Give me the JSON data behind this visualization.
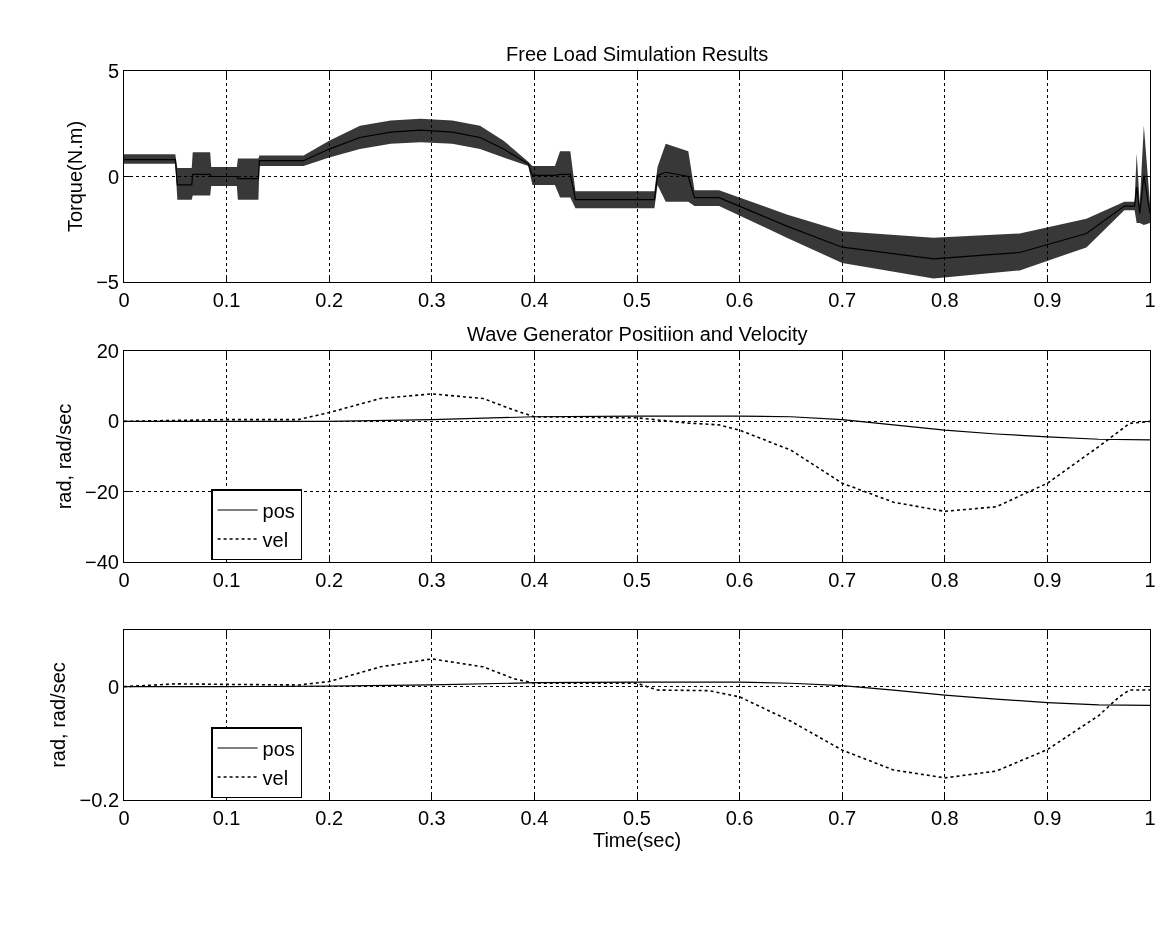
{
  "chart_data": [
    {
      "type": "line",
      "title": "Free Load Simulation Results",
      "ylabel": "Torque(N.m)",
      "xlim": [
        0,
        1
      ],
      "xticks": [
        0,
        0.1,
        0.2,
        0.3,
        0.4,
        0.5,
        0.6,
        0.7,
        0.8,
        0.9,
        1
      ],
      "ylim": [
        -5,
        5
      ],
      "yticks": [
        -5,
        0,
        5
      ],
      "grid": true,
      "legend": false,
      "series": [
        {
          "color": "#000000",
          "x": [
            0,
            0.05,
            0.052,
            0.066,
            0.067,
            0.084,
            0.085,
            0.11,
            0.111,
            0.131,
            0.132,
            0.175,
            0.2,
            0.23,
            0.26,
            0.289,
            0.32,
            0.347,
            0.37,
            0.394,
            0.398,
            0.42,
            0.425,
            0.435,
            0.44,
            0.517,
            0.52,
            0.528,
            0.55,
            0.556,
            0.58,
            0.646,
            0.7,
            0.789,
            0.873,
            0.938,
            0.975,
            0.985,
            0.987,
            0.99,
            0.994,
            1.0
          ],
          "lower": [
            0.6,
            0.6,
            -1.1,
            -1.1,
            -0.9,
            -0.9,
            -0.45,
            -0.45,
            -1.1,
            -1.1,
            0.5,
            0.5,
            0.9,
            1.3,
            1.55,
            1.62,
            1.55,
            1.3,
            0.9,
            0.5,
            -0.4,
            -0.4,
            -1.0,
            -1.0,
            -1.5,
            -1.5,
            -0.4,
            -1.2,
            -1.2,
            -1.4,
            -1.4,
            -2.9,
            -4.1,
            -4.83,
            -4.45,
            -3.36,
            -1.6,
            -1.6,
            -2.2,
            -2.2,
            -2.3,
            -2.2
          ],
          "upper": [
            1.05,
            1.05,
            0.4,
            0.4,
            1.15,
            1.15,
            0.45,
            0.45,
            0.85,
            0.85,
            1.0,
            1.0,
            1.7,
            2.4,
            2.65,
            2.74,
            2.65,
            2.4,
            1.7,
            0.7,
            0.5,
            0.5,
            1.2,
            1.2,
            -0.7,
            -0.7,
            0.45,
            1.55,
            1.2,
            -0.65,
            -0.65,
            -1.8,
            -2.6,
            -2.9,
            -2.7,
            -2.0,
            -1.2,
            -1.2,
            1.1,
            -1.3,
            2.4,
            -1.3
          ],
          "values": [
            0.8,
            0.8,
            -0.4,
            -0.4,
            0.1,
            0.1,
            0,
            0,
            -0.1,
            -0.1,
            0.75,
            0.75,
            1.3,
            1.85,
            2.1,
            2.2,
            2.1,
            1.85,
            1.3,
            0.6,
            0.05,
            0.05,
            0.1,
            0.1,
            -1.1,
            -1.1,
            0.05,
            0.2,
            0,
            -1.0,
            -1.0,
            -2.35,
            -3.35,
            -3.9,
            -3.6,
            -2.7,
            -1.4,
            -1.4,
            -0.5,
            -1.75,
            0.05,
            -1.75
          ]
        }
      ]
    },
    {
      "type": "line",
      "title": "Wave Generator Positiion and Velocity",
      "ylabel": "rad, rad/sec",
      "xlim": [
        0,
        1
      ],
      "xticks": [
        0,
        0.1,
        0.2,
        0.3,
        0.4,
        0.5,
        0.6,
        0.7,
        0.8,
        0.9,
        1
      ],
      "ylim": [
        -40,
        20
      ],
      "yticks": [
        -40,
        -20,
        0,
        20
      ],
      "grid": true,
      "legend": "bottom left",
      "series": [
        {
          "name": "pos",
          "color": "#000000",
          "line_style": "solid",
          "x": [
            0,
            0.1,
            0.2,
            0.3,
            0.4,
            0.5,
            0.6,
            0.65,
            0.7,
            0.75,
            0.8,
            0.85,
            0.9,
            0.95,
            1.0
          ],
          "values": [
            0,
            0,
            0,
            0.5,
            1.3,
            1.5,
            1.5,
            1.3,
            0.5,
            -1.0,
            -2.5,
            -3.6,
            -4.4,
            -5.1,
            -5.3
          ]
        },
        {
          "name": "vel",
          "color": "#000000",
          "line_style": "dotted",
          "x": [
            0,
            0.1,
            0.17,
            0.2,
            0.25,
            0.3,
            0.35,
            0.38,
            0.4,
            0.5,
            0.55,
            0.58,
            0.6,
            0.65,
            0.7,
            0.75,
            0.8,
            0.85,
            0.9,
            0.95,
            0.98,
            1.0
          ],
          "values": [
            0,
            0.5,
            0.5,
            2.5,
            6.5,
            7.8,
            6.5,
            3.2,
            1.3,
            1.0,
            -0.5,
            -1.0,
            -2.5,
            -8.2,
            -17.6,
            -23,
            -25.6,
            -24.3,
            -17.6,
            -7.2,
            -0.6,
            0
          ]
        }
      ]
    },
    {
      "type": "line",
      "ylabel": "rad, rad/sec",
      "xlabel": "Time(sec)",
      "xlim": [
        0,
        1
      ],
      "xticks": [
        0,
        0.1,
        0.2,
        0.3,
        0.4,
        0.5,
        0.6,
        0.7,
        0.8,
        0.9,
        1
      ],
      "ylim": [
        -0.2,
        0.1
      ],
      "yticks": [
        -0.2,
        0
      ],
      "grid": true,
      "legend": "bottom left",
      "series": [
        {
          "name": "pos",
          "color": "#000000",
          "line_style": "solid",
          "x": [
            0,
            0.1,
            0.2,
            0.3,
            0.4,
            0.5,
            0.6,
            0.65,
            0.7,
            0.75,
            0.8,
            0.85,
            0.9,
            0.95,
            1.0
          ],
          "values": [
            0,
            0,
            0.001,
            0.003,
            0.007,
            0.008,
            0.008,
            0.006,
            0.002,
            -0.006,
            -0.015,
            -0.022,
            -0.028,
            -0.032,
            -0.033
          ]
        },
        {
          "name": "vel",
          "color": "#000000",
          "line_style": "dotted",
          "x": [
            0,
            0.05,
            0.1,
            0.17,
            0.2,
            0.25,
            0.3,
            0.35,
            0.38,
            0.4,
            0.5,
            0.52,
            0.57,
            0.6,
            0.65,
            0.7,
            0.75,
            0.8,
            0.85,
            0.9,
            0.95,
            0.97,
            0.98,
            1.0
          ],
          "values": [
            0,
            0.005,
            0.004,
            0.003,
            0.009,
            0.035,
            0.049,
            0.035,
            0.014,
            0.006,
            0.006,
            -0.006,
            -0.007,
            -0.018,
            -0.061,
            -0.112,
            -0.147,
            -0.161,
            -0.149,
            -0.111,
            -0.051,
            -0.018,
            -0.006,
            -0.006
          ]
        }
      ]
    }
  ]
}
